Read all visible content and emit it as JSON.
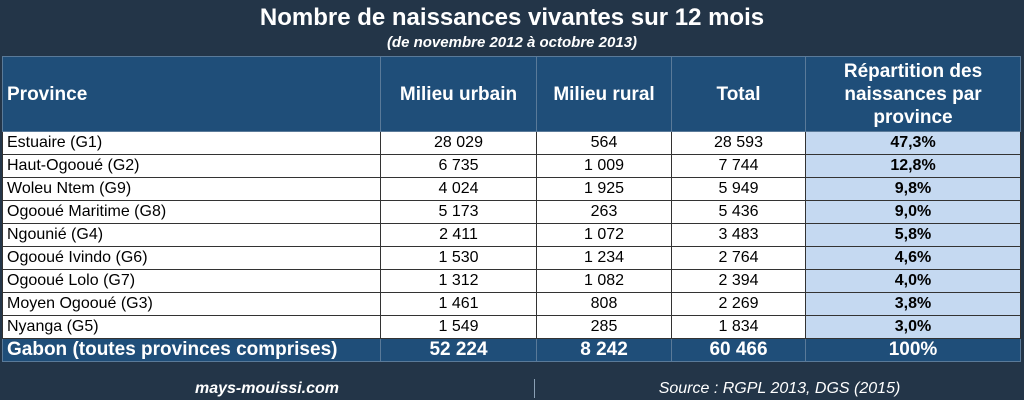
{
  "title": "Nombre de naissances vivantes sur 12 mois",
  "subtitle": "(de novembre 2012 à octobre 2013)",
  "table": {
    "headers": {
      "province": "Province",
      "urbain": "Milieu urbain",
      "rural": "Milieu rural",
      "total": "Total",
      "share": "Répartition des naissances par province"
    },
    "rows": [
      {
        "province": "Estuaire (G1)",
        "urbain": "28 029",
        "rural": "564",
        "total": "28 593",
        "share": "47,3%"
      },
      {
        "province": "Haut-Ogooué (G2)",
        "urbain": "6 735",
        "rural": "1 009",
        "total": "7 744",
        "share": "12,8%"
      },
      {
        "province": "Woleu Ntem (G9)",
        "urbain": "4 024",
        "rural": "1 925",
        "total": "5 949",
        "share": "9,8%"
      },
      {
        "province": "Ogooué Maritime (G8)",
        "urbain": "5 173",
        "rural": "263",
        "total": "5 436",
        "share": "9,0%"
      },
      {
        "province": "Ngounié (G4)",
        "urbain": "2 411",
        "rural": "1 072",
        "total": "3 483",
        "share": "5,8%"
      },
      {
        "province": "Ogooué Ivindo (G6)",
        "urbain": "1 530",
        "rural": "1 234",
        "total": "2 764",
        "share": "4,6%"
      },
      {
        "province": "Ogooué Lolo (G7)",
        "urbain": "1 312",
        "rural": "1 082",
        "total": "2 394",
        "share": "4,0%"
      },
      {
        "province": "Moyen Ogooué (G3)",
        "urbain": "1 461",
        "rural": "808",
        "total": "2 269",
        "share": "3,8%"
      },
      {
        "province": "Nyanga (G5)",
        "urbain": "1 549",
        "rural": "285",
        "total": "1 834",
        "share": "3,0%"
      }
    ],
    "total_row": {
      "province": "Gabon (toutes provinces comprises)",
      "urbain": "52 224",
      "rural": "8 242",
      "total": "60 466",
      "share": "100%"
    }
  },
  "footer": {
    "site": "mays-mouissi.com",
    "source": "Source : RGPL 2013, DGS (2015)"
  },
  "colors": {
    "header_bg": "#1f4e79",
    "frame_bg": "#233548",
    "share_bg": "#c5d9f1"
  }
}
